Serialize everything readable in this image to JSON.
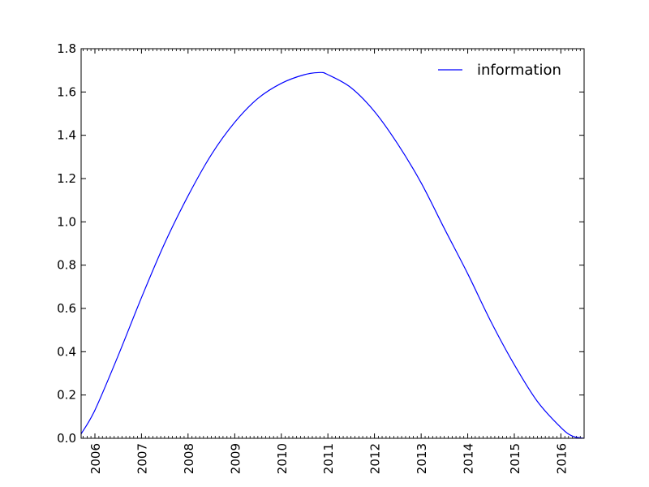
{
  "chart_data": {
    "type": "line",
    "title": "",
    "xlabel": "",
    "ylabel": "",
    "xlim": [
      "2005-09-15",
      "2016-07-01"
    ],
    "ylim": [
      0,
      1.8
    ],
    "xticks": [
      "2006-01-01",
      "2007-01-01",
      "2008-01-01",
      "2009-01-01",
      "2010-01-01",
      "2011-01-01",
      "2012-01-01",
      "2013-01-01",
      "2014-01-01",
      "2015-01-01",
      "2016-01-01"
    ],
    "xtick_labels": [
      "2006",
      "2007",
      "2008",
      "2009",
      "2010",
      "2011",
      "2012",
      "2013",
      "2014",
      "2015",
      "2016"
    ],
    "yticks": [
      0.0,
      0.2,
      0.4,
      0.6,
      0.8,
      1.0,
      1.2,
      1.4,
      1.6,
      1.8
    ],
    "ytick_labels": [
      "0.0",
      "0.2",
      "0.4",
      "0.6",
      "0.8",
      "1.0",
      "1.2",
      "1.4",
      "1.6",
      "1.8"
    ],
    "grid": false,
    "legend_position": "top-right",
    "series": [
      {
        "name": "information",
        "color": "#0000ff",
        "x": [
          "2005-09-15",
          "2006-01-01",
          "2006-07-01",
          "2007-01-01",
          "2007-07-01",
          "2008-01-01",
          "2008-07-01",
          "2009-01-01",
          "2009-07-01",
          "2010-01-01",
          "2010-07-01",
          "2010-11-01",
          "2011-01-01",
          "2011-07-01",
          "2012-01-01",
          "2012-07-01",
          "2013-01-01",
          "2013-07-01",
          "2014-01-01",
          "2014-07-01",
          "2015-01-01",
          "2015-07-01",
          "2016-01-01",
          "2016-04-01",
          "2016-07-01"
        ],
        "y": [
          0.02,
          0.13,
          0.38,
          0.65,
          0.9,
          1.12,
          1.31,
          1.46,
          1.57,
          1.64,
          1.68,
          1.69,
          1.68,
          1.62,
          1.51,
          1.36,
          1.18,
          0.97,
          0.76,
          0.54,
          0.34,
          0.17,
          0.05,
          0.01,
          0.0
        ]
      }
    ]
  }
}
